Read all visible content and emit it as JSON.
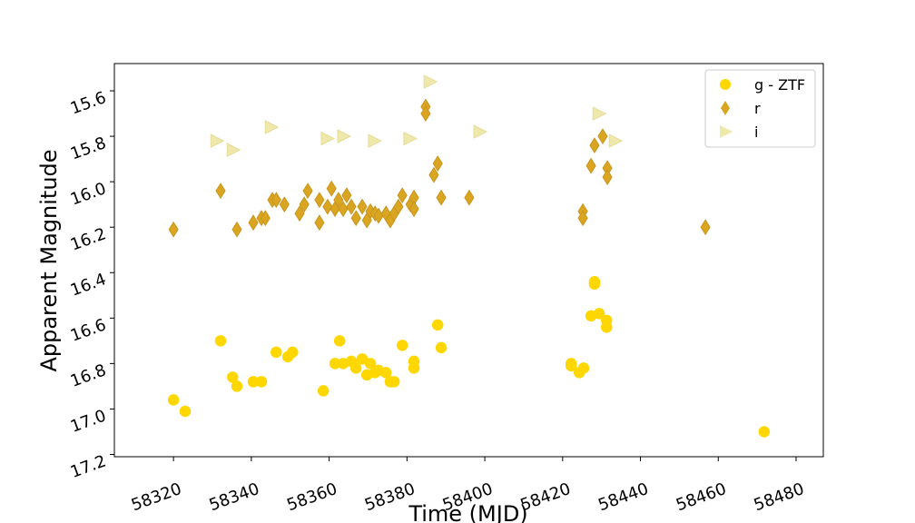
{
  "chart_data": {
    "type": "scatter",
    "xlabel": "Time (MJD)",
    "ylabel": "Apparent Magnitude",
    "xlim": [
      58304.8,
      58487
    ],
    "ylim": [
      17.21,
      15.48
    ],
    "xticks": [
      58320,
      58340,
      58360,
      58380,
      58400,
      58420,
      58440,
      58460,
      58480
    ],
    "yticks": [
      15.6,
      15.8,
      {
        "value": 16,
        "label": "16.0"
      },
      16.2,
      16.4,
      16.6,
      16.8,
      {
        "value": 17,
        "label": "17.0"
      },
      17.2
    ],
    "legend": "upper right",
    "series": [
      {
        "name": "g - ZTF",
        "color": "#ffd700",
        "marker": "circle",
        "x": [
          58320.0,
          58323.0,
          58332.1,
          58335.2,
          58336.3,
          58340.5,
          58342.6,
          58346.4,
          58349.4,
          58350.6,
          58358.5,
          58361.5,
          58362.7,
          58363.6,
          58365.7,
          58366.9,
          58368.5,
          58369.7,
          58370.6,
          58371.8,
          58372.7,
          58374.6,
          58375.7,
          58376.7,
          58378.8,
          58381.8,
          58381.8,
          58387.9,
          58388.8,
          58422.2,
          58422.2,
          58424.3,
          58425.4,
          58427.3,
          58428.2,
          58428.2,
          58429.4,
          58431.3,
          58431.3,
          58471.8
        ],
        "values": [
          16.96,
          17.01,
          16.7,
          16.86,
          16.9,
          16.88,
          16.88,
          16.75,
          16.77,
          16.75,
          16.92,
          16.8,
          16.7,
          16.8,
          16.79,
          16.82,
          16.78,
          16.85,
          16.8,
          16.84,
          16.83,
          16.84,
          16.88,
          16.88,
          16.72,
          16.79,
          16.82,
          16.63,
          16.73,
          16.8,
          16.81,
          16.84,
          16.82,
          16.59,
          16.44,
          16.45,
          16.58,
          16.61,
          16.64,
          17.1
        ]
      },
      {
        "name": "r",
        "color": "#daa520",
        "marker": "diamond",
        "x": [
          58320.0,
          58332.1,
          58336.3,
          58340.5,
          58342.6,
          58343.6,
          58345.4,
          58346.4,
          58348.5,
          58352.4,
          58353.6,
          58354.5,
          58357.5,
          58357.5,
          58359.6,
          58360.6,
          58361.5,
          58362.4,
          58363.6,
          58364.5,
          58365.7,
          58366.9,
          58368.5,
          58369.7,
          58370.6,
          58371.8,
          58372.7,
          58374.6,
          58375.7,
          58376.7,
          58377.8,
          58378.8,
          58380.9,
          58381.8,
          58381.8,
          58384.8,
          58384.8,
          58386.9,
          58387.9,
          58388.8,
          58396.0,
          58425.2,
          58425.2,
          58427.3,
          58428.2,
          58430.3,
          58431.5,
          58431.5,
          58456.7
        ],
        "values": [
          16.21,
          16.04,
          16.21,
          16.18,
          16.16,
          16.16,
          16.08,
          16.08,
          16.1,
          16.14,
          16.1,
          16.04,
          16.08,
          16.18,
          16.11,
          16.03,
          16.12,
          16.08,
          16.12,
          16.06,
          16.11,
          16.16,
          16.11,
          16.17,
          16.13,
          16.14,
          16.15,
          16.14,
          16.17,
          16.14,
          16.11,
          16.06,
          16.1,
          16.07,
          16.12,
          15.67,
          15.7,
          15.97,
          15.92,
          16.07,
          16.07,
          16.13,
          16.16,
          15.93,
          15.84,
          15.8,
          15.94,
          15.98,
          16.2
        ]
      },
      {
        "name": "i",
        "color": "#eee8aa",
        "marker": "triangle",
        "x": [
          58331.0,
          58335.2,
          58345.0,
          58359.4,
          58363.6,
          58371.5,
          58380.6,
          58385.8,
          58398.6,
          58429.2,
          58433.4
        ],
        "values": [
          15.82,
          15.86,
          15.76,
          15.81,
          15.8,
          15.82,
          15.81,
          15.56,
          15.78,
          15.7,
          15.82
        ]
      }
    ]
  }
}
